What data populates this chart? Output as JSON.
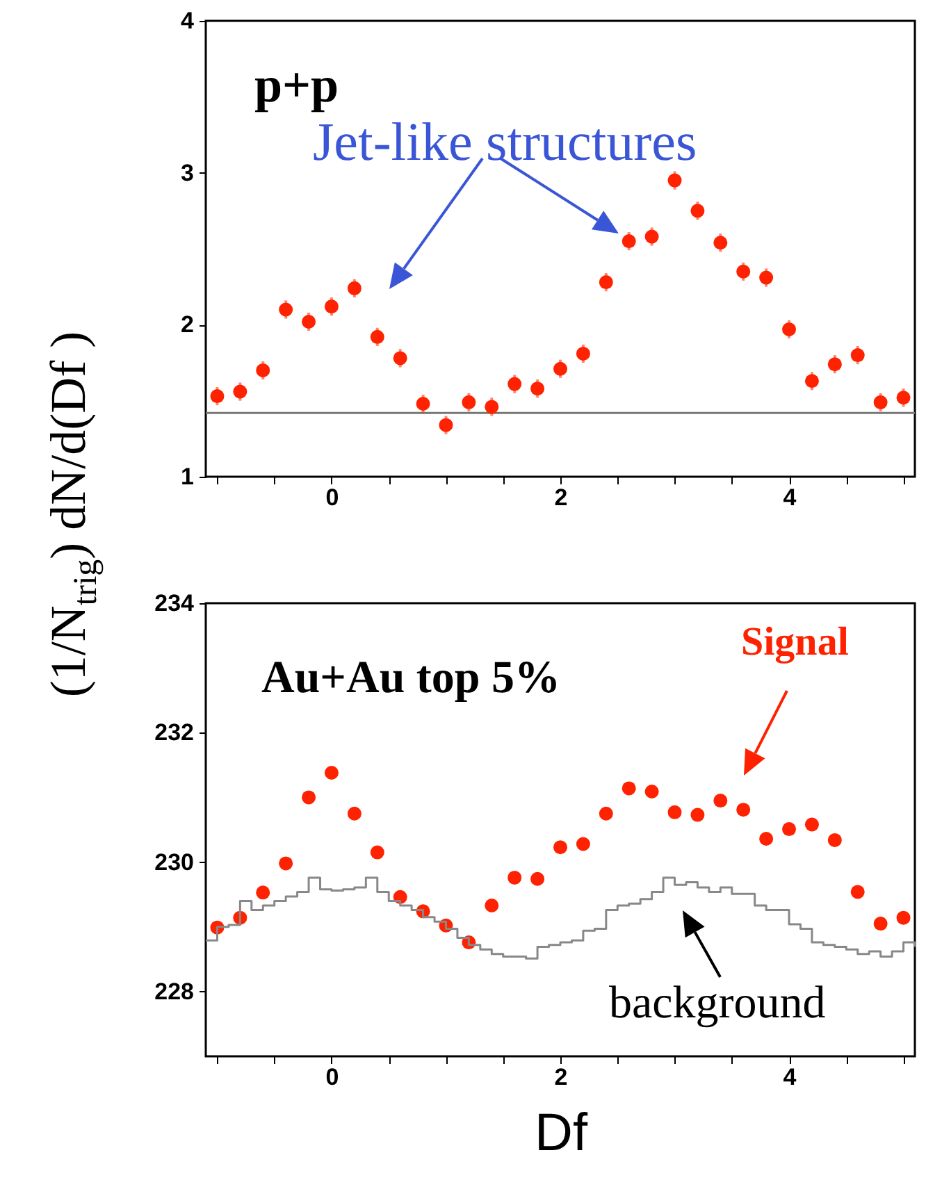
{
  "chart_data": [
    {
      "type": "scatter",
      "ylabel": "(1/N$_{trig}$) dN/d(Df )",
      "annotations": [
        "p+p",
        "Jet-like structures"
      ],
      "x": [
        -1.0,
        -0.8,
        -0.6,
        -0.4,
        -0.2,
        0.0,
        0.2,
        0.4,
        0.6,
        0.8,
        1.0,
        1.2,
        1.4,
        1.6,
        1.8,
        2.0,
        2.2,
        2.4,
        2.6,
        2.8,
        3.0,
        3.2,
        3.4,
        3.6,
        3.8,
        4.0,
        4.2,
        4.4,
        4.6,
        4.8,
        5.0
      ],
      "series": [
        {
          "color": "#ff2200",
          "values": [
            1.53,
            1.56,
            1.7,
            2.1,
            2.02,
            2.12,
            2.24,
            1.92,
            1.78,
            1.48,
            1.34,
            1.49,
            1.46,
            1.61,
            1.58,
            1.71,
            1.81,
            2.28,
            2.55,
            2.58,
            2.95,
            2.75,
            2.54,
            2.35,
            2.31,
            1.97,
            1.63,
            1.74,
            1.8,
            1.49,
            1.52
          ],
          "errors": [
            0.06,
            0.06,
            0.06,
            0.06,
            0.06,
            0.06,
            0.06,
            0.06,
            0.06,
            0.06,
            0.06,
            0.06,
            0.06,
            0.06,
            0.06,
            0.06,
            0.06,
            0.06,
            0.06,
            0.06,
            0.06,
            0.06,
            0.06,
            0.06,
            0.06,
            0.06,
            0.06,
            0.06,
            0.06,
            0.06,
            0.06
          ]
        }
      ],
      "xlim": [
        -1.1,
        5.1
      ],
      "ylim": [
        1,
        4
      ],
      "xticks": [
        {
          "value": -1,
          "label": null
        },
        {
          "value": -0.5,
          "label": null
        },
        0,
        {
          "value": 0.5,
          "label": null
        },
        {
          "value": 1,
          "label": null
        },
        {
          "value": 1.5,
          "label": null
        },
        2,
        {
          "value": 2.5,
          "label": null
        },
        {
          "value": 3,
          "label": null
        },
        {
          "value": 3.5,
          "label": null
        },
        4,
        {
          "value": 4.5,
          "label": null
        },
        {
          "value": 5,
          "label": null
        }
      ],
      "yticks": [
        1,
        2,
        3,
        4
      ],
      "ref_lines": [
        {
          "axis": "y",
          "value": 1.42,
          "color": "#777777",
          "line_style": "solid"
        }
      ],
      "marker": "circle",
      "grid": false
    },
    {
      "type": "scatter",
      "xlabel": "Df",
      "annotations": [
        "Au+Au top 5%"
      ],
      "x": [
        -1.0,
        -0.8,
        -0.6,
        -0.4,
        -0.2,
        0.0,
        0.2,
        0.4,
        0.6,
        0.8,
        1.0,
        1.2,
        1.4,
        1.6,
        1.8,
        2.0,
        2.2,
        2.4,
        2.6,
        2.8,
        3.0,
        3.2,
        3.4,
        3.6,
        3.8,
        4.0,
        4.2,
        4.4,
        4.6,
        4.8,
        5.0
      ],
      "series": [
        {
          "name": "Signal",
          "marker": "circle",
          "color": "#ff2200",
          "values": [
            228.99,
            229.14,
            229.53,
            229.98,
            231.0,
            231.38,
            230.75,
            230.15,
            229.46,
            229.24,
            229.02,
            228.76,
            229.33,
            229.76,
            229.74,
            230.23,
            230.28,
            230.75,
            231.14,
            231.09,
            230.77,
            230.73,
            230.95,
            230.81,
            230.36,
            230.51,
            230.58,
            230.34,
            229.54,
            229.05,
            229.14
          ]
        },
        {
          "name": "background",
          "type": "step",
          "marker": "none",
          "color": "#888888",
          "x": [
            -1.1,
            -1.0,
            -0.9,
            -0.8,
            -0.7,
            -0.6,
            -0.5,
            -0.4,
            -0.3,
            -0.2,
            -0.1,
            0.0,
            0.1,
            0.2,
            0.3,
            0.4,
            0.5,
            0.6,
            0.7,
            0.8,
            0.9,
            1.0,
            1.1,
            1.2,
            1.3,
            1.4,
            1.5,
            1.6,
            1.7,
            1.8,
            1.9,
            2.0,
            2.1,
            2.2,
            2.3,
            2.4,
            2.5,
            2.6,
            2.7,
            2.8,
            2.9,
            3.0,
            3.1,
            3.2,
            3.3,
            3.4,
            3.5,
            3.6,
            3.7,
            3.8,
            3.9,
            4.0,
            4.1,
            4.2,
            4.3,
            4.4,
            4.5,
            4.6,
            4.7,
            4.8,
            4.9,
            5.0,
            5.1
          ],
          "values": [
            228.79,
            229.0,
            229.03,
            229.4,
            229.26,
            229.33,
            229.4,
            229.47,
            229.54,
            229.76,
            229.58,
            229.56,
            229.58,
            229.61,
            229.76,
            229.54,
            229.4,
            229.33,
            229.26,
            229.15,
            229.08,
            228.97,
            228.83,
            228.72,
            228.65,
            228.58,
            228.54,
            228.54,
            228.51,
            228.69,
            228.72,
            228.76,
            228.79,
            228.94,
            228.97,
            229.26,
            229.33,
            229.36,
            229.43,
            229.54,
            229.76,
            229.65,
            229.69,
            229.61,
            229.54,
            229.61,
            229.51,
            229.51,
            229.33,
            229.26,
            229.26,
            229.04,
            228.97,
            228.76,
            228.72,
            228.69,
            228.65,
            228.58,
            228.62,
            228.54,
            228.62,
            228.76,
            228.69
          ]
        }
      ],
      "xlim": [
        -1.1,
        5.1
      ],
      "ylim": [
        227,
        234
      ],
      "xticks": [
        {
          "value": -1,
          "label": null
        },
        {
          "value": -0.5,
          "label": null
        },
        0,
        {
          "value": 0.5,
          "label": null
        },
        {
          "value": 1,
          "label": null
        },
        {
          "value": 1.5,
          "label": null
        },
        2,
        {
          "value": 2.5,
          "label": null
        },
        {
          "value": 3,
          "label": null
        },
        {
          "value": 3.5,
          "label": null
        },
        4,
        {
          "value": 4.5,
          "label": null
        },
        {
          "value": 5,
          "label": null
        }
      ],
      "yticks": [
        228,
        230,
        232,
        234
      ],
      "grid": false
    }
  ]
}
